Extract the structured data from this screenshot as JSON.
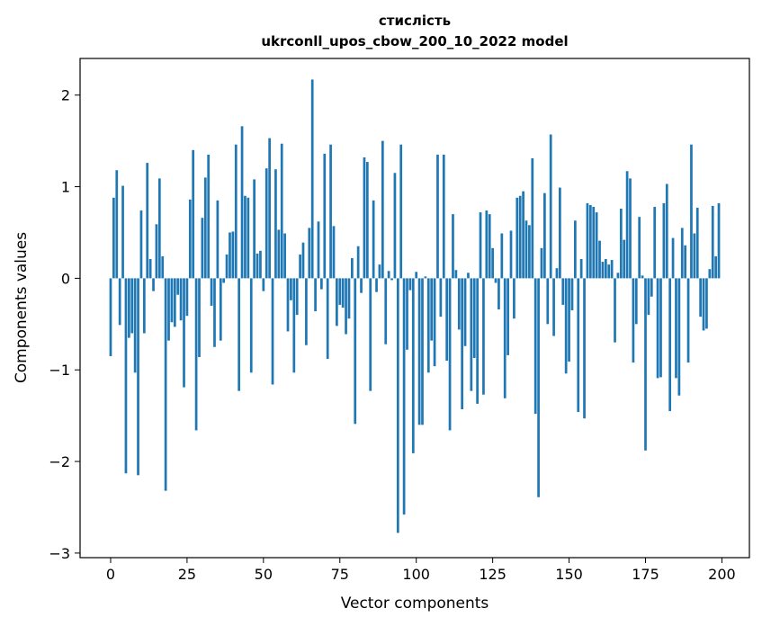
{
  "chart_data": {
    "type": "bar",
    "title_lines": [
      "стислість",
      "ukrconll_upos_cbow_200_10_2022 model"
    ],
    "xlabel": "Vector components",
    "ylabel": "Components values",
    "xlim": [
      -10,
      209
    ],
    "ylim": [
      -3.05,
      2.4
    ],
    "xticks": [
      0,
      25,
      50,
      75,
      100,
      125,
      150,
      175,
      200
    ],
    "xtick_labels": [
      "0",
      "25",
      "50",
      "75",
      "100",
      "125",
      "150",
      "175",
      "200"
    ],
    "yticks": [
      -3,
      -2,
      -1,
      0,
      1,
      2
    ],
    "ytick_labels": [
      "−3",
      "−2",
      "−1",
      "0",
      "1",
      "2"
    ],
    "grid": false,
    "bar_color": "#1f77b4",
    "values": [
      -0.85,
      0.88,
      1.18,
      -0.51,
      1.01,
      -2.13,
      -0.65,
      -0.6,
      -1.03,
      -2.15,
      0.74,
      -0.6,
      1.26,
      0.21,
      -0.14,
      0.59,
      1.09,
      0.24,
      -2.32,
      -0.68,
      -0.48,
      -0.53,
      -0.18,
      -0.46,
      -1.19,
      -0.41,
      0.86,
      1.4,
      -1.66,
      -0.86,
      0.66,
      1.1,
      1.35,
      -0.3,
      -0.75,
      0.85,
      -0.68,
      -0.05,
      0.26,
      0.5,
      0.51,
      1.46,
      -1.23,
      1.66,
      0.9,
      0.88,
      -1.03,
      1.08,
      0.27,
      0.3,
      -0.14,
      1.2,
      1.53,
      -1.16,
      1.19,
      0.53,
      1.47,
      0.49,
      -0.58,
      -0.24,
      -1.03,
      -0.4,
      0.26,
      0.39,
      -0.73,
      0.55,
      2.17,
      -0.36,
      0.62,
      -0.12,
      1.36,
      -0.88,
      1.46,
      0.57,
      -0.52,
      -0.29,
      -0.32,
      -0.61,
      -0.44,
      0.22,
      -1.59,
      0.35,
      -0.16,
      1.32,
      1.27,
      -1.23,
      0.85,
      -0.15,
      0.15,
      1.5,
      -0.72,
      0.08,
      -0.02,
      1.15,
      -2.78,
      1.46,
      -2.58,
      -0.78,
      -0.13,
      -1.91,
      0.07,
      -1.6,
      -1.6,
      0.02,
      -1.03,
      -0.68,
      -0.96,
      1.35,
      -0.42,
      1.35,
      -0.9,
      -1.66,
      0.7,
      0.09,
      -0.56,
      -1.43,
      -0.74,
      0.06,
      -1.23,
      -0.87,
      -1.37,
      0.72,
      -1.27,
      0.74,
      0.7,
      0.33,
      -0.05,
      -0.34,
      0.49,
      -1.31,
      -0.84,
      0.52,
      -0.44,
      0.88,
      0.9,
      0.95,
      0.63,
      0.58,
      1.31,
      -1.48,
      -2.39,
      0.33,
      0.93,
      -0.5,
      1.57,
      -0.63,
      0.11,
      0.99,
      -0.29,
      -1.04,
      -0.91,
      -0.35,
      0.63,
      -1.46,
      0.21,
      -1.53,
      0.82,
      0.8,
      0.78,
      0.72,
      0.41,
      0.18,
      0.21,
      0.15,
      0.2,
      -0.7,
      0.06,
      0.76,
      0.42,
      1.17,
      1.09,
      -0.92,
      -0.5,
      0.67,
      0.03,
      -1.88,
      -0.4,
      -0.2,
      0.78,
      -1.09,
      -1.08,
      0.82,
      1.03,
      -1.45,
      0.44,
      -1.09,
      -1.28,
      0.55,
      0.36,
      -0.92,
      1.46,
      0.49,
      0.77,
      -0.42,
      -0.57,
      -0.55,
      0.1,
      0.79,
      0.24,
      0.82
    ]
  }
}
